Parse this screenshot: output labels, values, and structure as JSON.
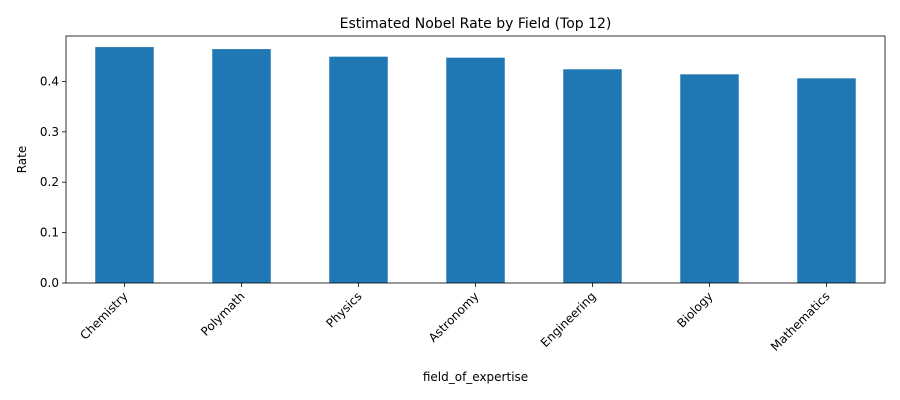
{
  "chart_data": {
    "type": "bar",
    "title": "Estimated Nobel Rate by Field (Top 12)",
    "xlabel": "field_of_expertise",
    "ylabel": "Rate",
    "categories": [
      "Chemistry",
      "Polymath",
      "Physics",
      "Astronomy",
      "Engineering",
      "Biology",
      "Mathematics"
    ],
    "values": [
      0.468,
      0.464,
      0.449,
      0.447,
      0.424,
      0.414,
      0.406
    ],
    "ylim": [
      0,
      0.49
    ],
    "yticks": [
      0.0,
      0.1,
      0.2,
      0.3,
      0.4
    ],
    "ytick_labels": [
      "0.0",
      "0.1",
      "0.2",
      "0.3",
      "0.4"
    ],
    "grid": false,
    "bar_color": "#1f77b4"
  }
}
